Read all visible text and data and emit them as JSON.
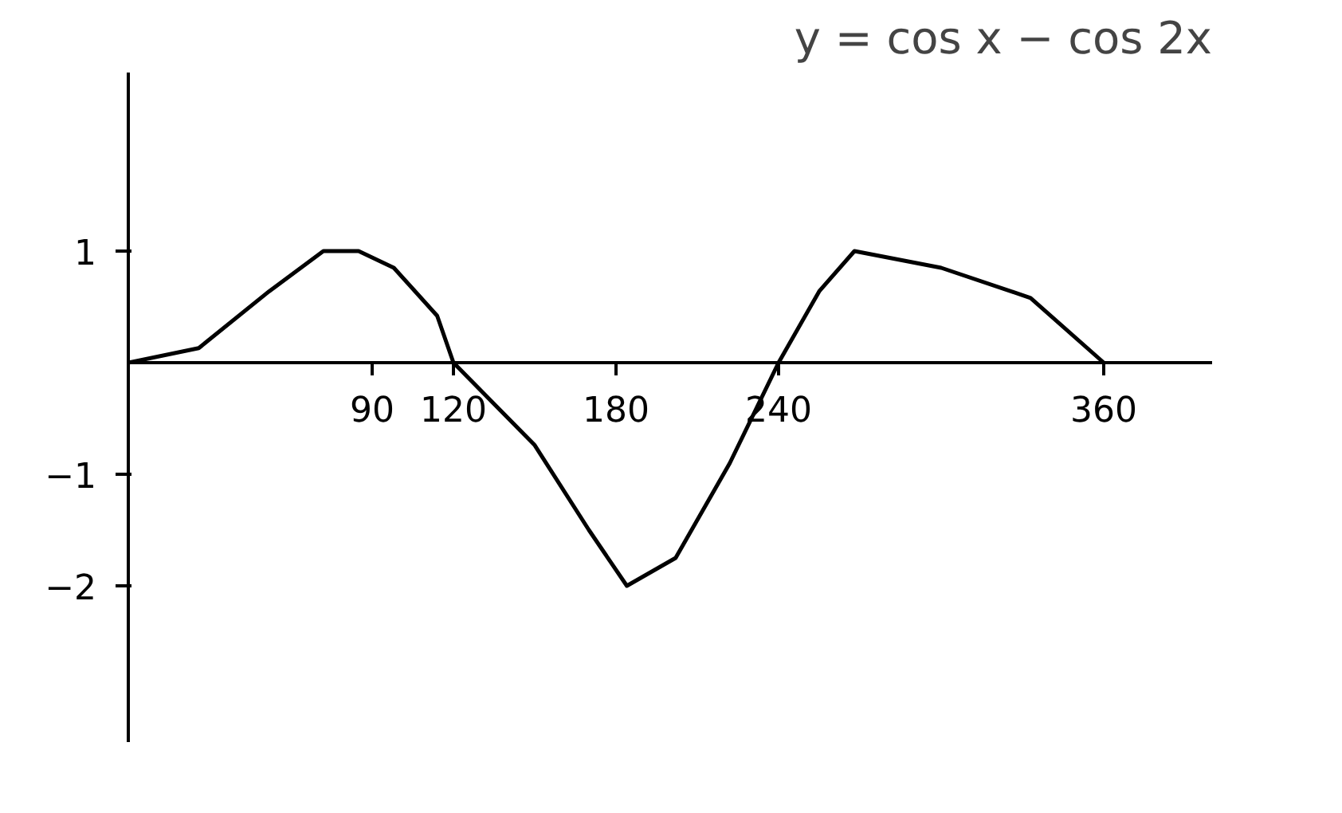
{
  "chart_data": {
    "type": "line",
    "title": "y = cos x − cos 2x",
    "x": [
      0,
      26,
      52,
      72,
      85,
      98,
      114,
      120,
      150,
      170,
      184,
      202,
      222,
      240,
      255,
      268,
      300,
      333,
      360
    ],
    "series": [
      {
        "color": "#000000",
        "values": [
          0,
          0.13,
          0.64,
          1.0,
          1.0,
          0.85,
          0.42,
          0,
          -0.74,
          -1.5,
          -2,
          -1.75,
          -0.9,
          0,
          0.64,
          1.0,
          0.85,
          0.58,
          0
        ]
      }
    ],
    "xlim": [
      0,
      400
    ],
    "ylim": [
      -3.4,
      2.6
    ],
    "xticks": [
      90,
      120,
      180,
      240,
      360
    ],
    "yticks": [
      1,
      -1,
      -2
    ]
  }
}
